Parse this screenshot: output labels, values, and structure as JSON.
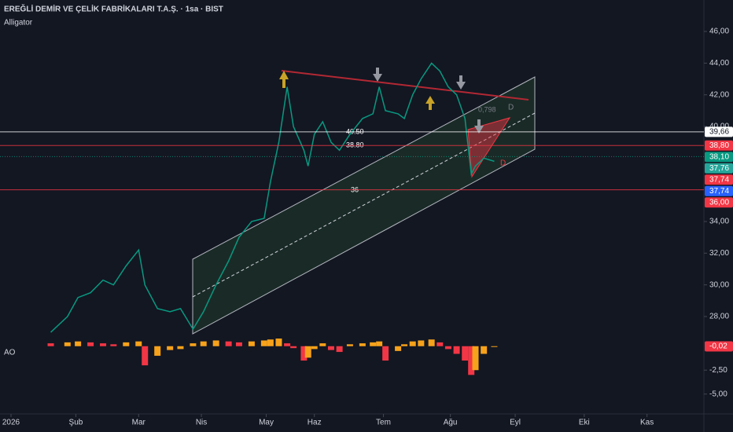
{
  "header": {
    "title": "EREĞLİ DEMİR VE ÇELİK FABRİKALARI T.A.Ş. · 1sa · BIST",
    "indicator": "Alligator",
    "ao_label": "AO"
  },
  "annotations": {
    "level_1": "40.50",
    "level_2": "38.80",
    "level_3": "36",
    "ratio": "0,798",
    "point_d": "D",
    "point_d2": "D"
  },
  "chart_data": [
    {
      "type": "line",
      "color": "#089981",
      "x": [
        19,
        27,
        32,
        38,
        44,
        49,
        55,
        61,
        64,
        70,
        76,
        81,
        87,
        92,
        98,
        104,
        109,
        115,
        121,
        124,
        128,
        132,
        135,
        140,
        142,
        145,
        149,
        153,
        157,
        162,
        168,
        173,
        176,
        179,
        185,
        188,
        192,
        196,
        201,
        205,
        209,
        213,
        217,
        220,
        222,
        226,
        231
      ],
      "values": [
        27.0,
        28.0,
        29.2,
        29.5,
        30.3,
        30.0,
        31.2,
        32.2,
        30.0,
        28.5,
        28.3,
        28.5,
        27.2,
        28.3,
        30.0,
        31.5,
        33.0,
        34.0,
        34.2,
        36.5,
        39.0,
        42.5,
        40.0,
        38.5,
        37.5,
        39.5,
        40.3,
        39.0,
        38.5,
        39.5,
        40.5,
        40.8,
        42.5,
        41.0,
        40.8,
        40.5,
        42.0,
        43.0,
        44.0,
        43.5,
        42.5,
        42.0,
        40.5,
        37.0,
        37.5,
        38.0,
        37.8
      ],
      "xlim": [
        -5.26,
        331.2
      ],
      "xticks": [
        {
          "value": 0,
          "label": "2026"
        },
        {
          "value": 31,
          "label": "Şub"
        },
        {
          "value": 61,
          "label": "Mar"
        },
        {
          "value": 91,
          "label": "Nis"
        },
        {
          "value": 122,
          "label": "May"
        },
        {
          "value": 145,
          "label": "Haz"
        },
        {
          "value": 178,
          "label": "Tem"
        },
        {
          "value": 210,
          "label": "Ağu"
        },
        {
          "value": 241,
          "label": "Eyl"
        },
        {
          "value": 274,
          "label": "Eki"
        },
        {
          "value": 304,
          "label": "Kas"
        }
      ],
      "ylim": [
        26.66,
        47.49
      ],
      "yticks": [
        {
          "value": 28,
          "label": "28,00"
        },
        {
          "value": 30,
          "label": "30,00"
        },
        {
          "value": 32,
          "label": "32,00"
        },
        {
          "value": 34,
          "label": "34,00"
        },
        {
          "value": 40,
          "label": "40,00"
        },
        {
          "value": 42,
          "label": "42,00"
        },
        {
          "value": 44,
          "label": "44,00"
        },
        {
          "value": 46,
          "label": "46,00"
        }
      ],
      "price_tags": [
        {
          "value": 39.66,
          "label": "39,66",
          "color": "#ffffff",
          "text_color": "#131722",
          "line": "solid"
        },
        {
          "value": 38.8,
          "label": "38,80",
          "color": "#f23645",
          "text_color": "#ffffff",
          "line": "solid"
        },
        {
          "value": 38.1,
          "label": "38,10",
          "color": "#089981",
          "text_color": "#ffffff",
          "line": "dotted"
        },
        {
          "value": 37.76,
          "label": "37,76",
          "color": "#26a69a",
          "text_color": "#ffffff",
          "line": "none"
        },
        {
          "value": 37.74,
          "label": "37,74",
          "color": "#f23645",
          "text_color": "#ffffff",
          "line": "none"
        },
        {
          "value": 37.74,
          "label": "37,74",
          "color": "#2962ff",
          "text_color": "#ffffff",
          "line": "none"
        },
        {
          "value": 36.0,
          "label": "36,00",
          "color": "#f23645",
          "text_color": "#ffffff",
          "line": "solid"
        }
      ]
    },
    {
      "type": "bar",
      "up_color": "#f7a21b",
      "down_color": "#f23645",
      "x": [
        19,
        27,
        32,
        38,
        44,
        49,
        55,
        61,
        64,
        70,
        76,
        81,
        87,
        92,
        98,
        104,
        109,
        115,
        121,
        124,
        128,
        132,
        135,
        140,
        142,
        145,
        149,
        153,
        157,
        162,
        168,
        173,
        176,
        179,
        185,
        188,
        192,
        196,
        201,
        205,
        209,
        213,
        217,
        220,
        222,
        226,
        231
      ],
      "values": [
        0.3,
        0.4,
        0.5,
        0.4,
        0.3,
        0.2,
        0.4,
        0.5,
        -2.0,
        -1.0,
        -0.4,
        -0.3,
        0.3,
        0.5,
        0.6,
        0.5,
        0.4,
        0.5,
        0.6,
        0.7,
        0.8,
        0.3,
        -0.2,
        -1.5,
        -1.2,
        -0.3,
        0.3,
        -0.4,
        -0.6,
        0.2,
        0.3,
        0.4,
        0.5,
        -1.5,
        -0.5,
        0.2,
        0.5,
        0.6,
        0.7,
        0.4,
        -0.3,
        -0.8,
        -1.5,
        -3.0,
        -2.5,
        -0.8,
        -0.02
      ],
      "xlim": [
        -5.26,
        331.2
      ],
      "ylim": [
        -6.5,
        0.8
      ],
      "yticks": [
        {
          "value": -2.5,
          "label": "-2,50"
        },
        {
          "value": -5,
          "label": "-5,00"
        }
      ],
      "price_tags": [
        {
          "value": -0.02,
          "label": "-0,02",
          "color": "#f23645",
          "text_color": "#ffffff",
          "line": "none"
        }
      ]
    }
  ]
}
